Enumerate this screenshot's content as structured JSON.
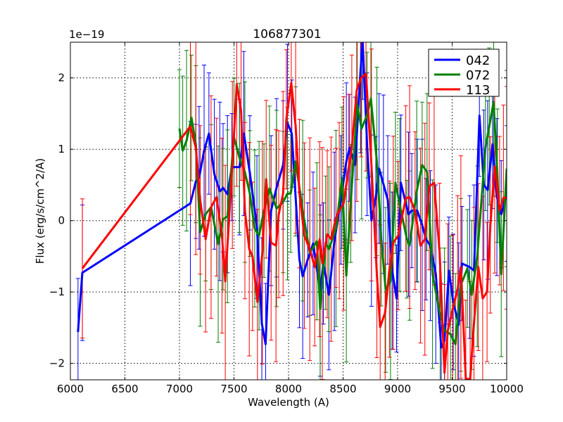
{
  "chart_data": {
    "type": "line",
    "title": "106877301",
    "xlabel": "Wavelength (A)",
    "ylabel": "Flux (erg/s/cm^2/A)",
    "y_offset_label": "1e−19",
    "xlim": [
      6000,
      10000
    ],
    "ylim": [
      -2.23,
      2.5
    ],
    "xticks": [
      6000,
      6500,
      7000,
      7500,
      8000,
      8500,
      9000,
      9500,
      10000
    ],
    "xtick_labels": [
      "6000",
      "6500",
      "7000",
      "7500",
      "8000",
      "8500",
      "9000",
      "9500",
      "10000"
    ],
    "yticks": [
      -2,
      -1,
      0,
      1,
      2
    ],
    "ytick_labels": [
      "−2",
      "−1",
      "0",
      "1",
      "2"
    ],
    "grid": true,
    "legend_position": "top-right",
    "series": [
      {
        "name": "042",
        "color": "#0000ff",
        "yerr": 1.0,
        "x": [
          6070,
          6110,
          7100,
          7150,
          7180,
          7226,
          7270,
          7320,
          7370,
          7400,
          7440,
          7480,
          7550,
          7590,
          7645,
          7710,
          7755,
          7790,
          7840,
          7890,
          7950,
          7990,
          8030,
          8100,
          8130,
          8175,
          8225,
          8290,
          8320,
          8370,
          8420,
          8480,
          8530,
          8560,
          8610,
          8660,
          8680,
          8720,
          8760,
          8800,
          8830,
          8870,
          8910,
          8950,
          8990,
          9030,
          9100,
          9130,
          9180,
          9225,
          9260,
          9300,
          9350,
          9400,
          9430,
          9470,
          9510,
          9560,
          9590,
          9660,
          9700,
          9750,
          9790,
          9825,
          9870,
          9910,
          9950,
          10000
        ],
        "y": [
          -1.56,
          -0.73,
          0.24,
          0.55,
          0.6,
          0.98,
          1.22,
          0.65,
          0.41,
          0.46,
          0.37,
          0.75,
          0.75,
          1.22,
          0.67,
          -0.09,
          -1.44,
          -1.73,
          0.14,
          0.46,
          0.78,
          1.37,
          1.22,
          -0.55,
          -0.78,
          -0.55,
          -0.32,
          -0.98,
          -0.6,
          -1.04,
          -0.29,
          0.29,
          0.83,
          1.02,
          0.78,
          2.1,
          2.5,
          1.07,
          0,
          0.33,
          0.73,
          0.51,
          0.29,
          -0.7,
          -1.09,
          0.53,
          0.09,
          0.14,
          0.14,
          -0.06,
          -0.26,
          -0.35,
          -0.75,
          -1.78,
          -1.68,
          -0.7,
          -1.14,
          -1.46,
          -0.6,
          -0.65,
          -0.7,
          1.47,
          0.5,
          0.43,
          1.07,
          0.33,
          0.09,
          0.38
        ]
      },
      {
        "name": "072",
        "color": "#008000",
        "yerr": 1.1,
        "x": [
          7000,
          7030,
          7065,
          7110,
          7150,
          7190,
          7240,
          7290,
          7355,
          7400,
          7440,
          7500,
          7550,
          7600,
          7645,
          7690,
          7730,
          7775,
          7825,
          7890,
          7950,
          7990,
          8020,
          8065,
          8130,
          8195,
          8260,
          8290,
          8340,
          8370,
          8435,
          8490,
          8530,
          8570,
          8630,
          8670,
          8720,
          8755,
          8810,
          8850,
          8890,
          8935,
          8980,
          9020,
          9085,
          9110,
          9175,
          9225,
          9270,
          9320,
          9390,
          9430,
          9485,
          9530,
          9580,
          9640,
          9680,
          9730,
          9805,
          9840,
          9880,
          9915,
          9950,
          10000
        ],
        "y": [
          1.29,
          0.98,
          1.12,
          1.44,
          1.07,
          -0.16,
          0.09,
          0.19,
          -0.33,
          0.02,
          0.06,
          1.17,
          0.88,
          0.68,
          0.38,
          -0.11,
          -0.21,
          0.14,
          0.45,
          0.17,
          0.26,
          0.38,
          0.38,
          0.83,
          0.14,
          -0.45,
          -0.29,
          -1.24,
          -0.31,
          -0.4,
          -0.11,
          0.6,
          -0.77,
          0.24,
          1.62,
          1.29,
          1.48,
          1.71,
          0.83,
          -0.26,
          -0.97,
          -0.85,
          0.53,
          0.22,
          -0.26,
          -0.35,
          0.41,
          0.78,
          0.68,
          -0.75,
          -1.32,
          -1.54,
          -1.59,
          -1.73,
          -0.9,
          -0.67,
          -1.04,
          -0.5,
          1.02,
          1.32,
          1.66,
          0.63,
          -0.75,
          0.73
        ]
      },
      {
        "name": "113",
        "color": "#ff0000",
        "yerr": 1.3,
        "x": [
          6110,
          7100,
          7150,
          7190,
          7240,
          7290,
          7340,
          7390,
          7420,
          7485,
          7525,
          7565,
          7600,
          7640,
          7670,
          7715,
          7760,
          7795,
          7840,
          7885,
          7910,
          7950,
          7980,
          8025,
          8065,
          8100,
          8145,
          8195,
          8240,
          8285,
          8310,
          8355,
          8390,
          8435,
          8465,
          8505,
          8550,
          8580,
          8625,
          8665,
          8710,
          8760,
          8810,
          8840,
          8885,
          8925,
          8960,
          9005,
          9075,
          9110,
          9160,
          9210,
          9250,
          9290,
          9335,
          9385,
          9430,
          9460,
          9505,
          9550,
          9580,
          9625,
          9665,
          9700,
          9740,
          9780,
          9820,
          9850,
          9890,
          9935,
          9970,
          10000
        ],
        "y": [
          -0.67,
          1.32,
          1.02,
          0.29,
          -0.26,
          0.19,
          0.33,
          -0.21,
          -0.85,
          0.78,
          1.91,
          1.54,
          0.14,
          -0.4,
          -0.5,
          -1.14,
          -0.45,
          0.58,
          -0.31,
          -0.35,
          0.09,
          0.38,
          1.42,
          1.93,
          1.32,
          0.38,
          -0.21,
          -0.4,
          -0.65,
          -0.26,
          -0.6,
          -0.19,
          -0.26,
          0.04,
          0.14,
          0.24,
          0.73,
          1.02,
          1.83,
          2.0,
          2.06,
          0.78,
          -0.75,
          -1.49,
          -1.29,
          -0.68,
          -0.31,
          -0.21,
          0.31,
          0.33,
          0.14,
          -0.35,
          -0.26,
          0.48,
          0.53,
          -0.45,
          -2.13,
          -1.54,
          -1.24,
          -0.95,
          -0.65,
          -2.22,
          -2.22,
          -1.44,
          -0.65,
          -1.09,
          -1.0,
          -0.06,
          0.76,
          0.14,
          0.32,
          0.32
        ]
      }
    ]
  }
}
